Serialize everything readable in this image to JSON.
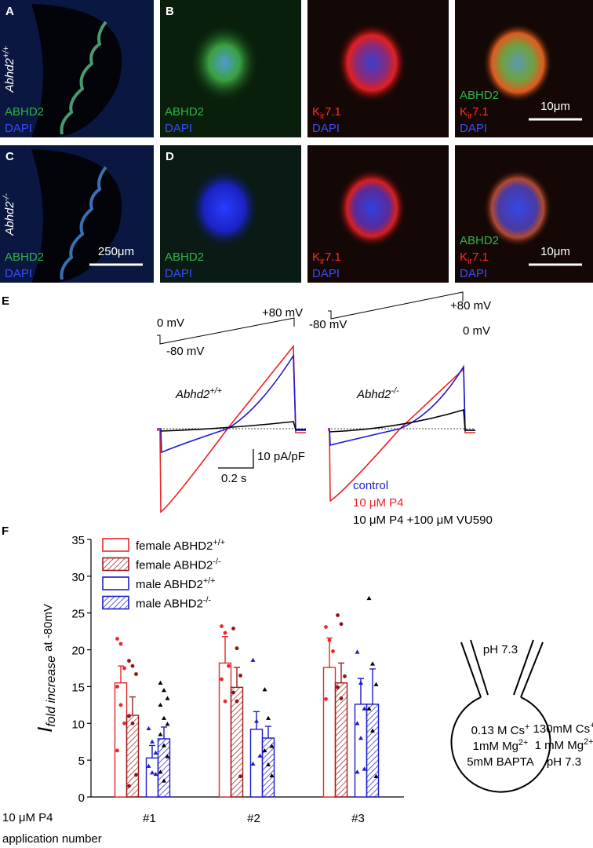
{
  "micrographs": {
    "rows": [
      {
        "genotype": {
          "gene": "Abhd2",
          "sup": "+/+"
        },
        "panels": [
          {
            "letter": "A",
            "labels": [
              {
                "text": "ABHD2",
                "color": "#2fb34a"
              },
              {
                "text": "DAPI",
                "color": "#3a4dff"
              }
            ]
          },
          {
            "letter": "B",
            "labels": [
              {
                "text": "ABHD2",
                "color": "#2fb34a"
              },
              {
                "text": "DAPI",
                "color": "#3a4dff"
              }
            ]
          },
          {
            "labels": [
              {
                "text": "K",
                "sub": "ir",
                "rest": "7.1",
                "color": "#ff2a2a"
              },
              {
                "text": "DAPI",
                "color": "#3a4dff"
              }
            ]
          },
          {
            "labels": [
              {
                "text": "ABHD2",
                "color": "#2fb34a"
              },
              {
                "text": "K",
                "sub": "ir",
                "rest": "7.1",
                "color": "#ff2a2a"
              },
              {
                "text": "DAPI",
                "color": "#3a4dff"
              }
            ],
            "scale_bar": "10μm"
          }
        ]
      },
      {
        "genotype": {
          "gene": "Abhd2",
          "sup": "-/-"
        },
        "panels": [
          {
            "letter": "C",
            "labels": [
              {
                "text": "ABHD2",
                "color": "#2fb34a"
              },
              {
                "text": "DAPI",
                "color": "#3a4dff"
              }
            ],
            "scale_bar": "250μm"
          },
          {
            "letter": "D",
            "labels": [
              {
                "text": "ABHD2",
                "color": "#2fb34a"
              },
              {
                "text": "DAPI",
                "color": "#3a4dff"
              }
            ]
          },
          {
            "labels": [
              {
                "text": "K",
                "sub": "ir",
                "rest": "7.1",
                "color": "#ff2a2a"
              },
              {
                "text": "DAPI",
                "color": "#3a4dff"
              }
            ]
          },
          {
            "labels": [
              {
                "text": "ABHD2",
                "color": "#2fb34a"
              },
              {
                "text": "K",
                "sub": "ir",
                "rest": "7.1",
                "color": "#ff2a2a"
              },
              {
                "text": "DAPI",
                "color": "#3a4dff"
              }
            ],
            "scale_bar": "10μm"
          }
        ]
      }
    ]
  },
  "panel_e": {
    "letter": "E",
    "protocols": [
      {
        "zero": "0 mV",
        "plus": "+80 mV",
        "minus": "-80 mV"
      },
      {
        "zero": "0 mV",
        "plus": "+80 mV",
        "minus": "-80 mV"
      }
    ],
    "genotypes": [
      {
        "gene": "Abhd2",
        "sup": "+/+"
      },
      {
        "gene": "Abhd2",
        "sup": "-/-"
      }
    ],
    "scale": {
      "y": "10 pA/pF",
      "x": "0.2 s"
    },
    "legend": [
      {
        "text": "control",
        "color": "#1a1ad6"
      },
      {
        "text": "10 μM P4",
        "color": "#ee2222"
      },
      {
        "text": "10 μM P4 +100 μM VU590",
        "color": "#000000"
      }
    ]
  },
  "panel_f": {
    "letter": "F",
    "x_label": [
      "10 μM P4",
      "application number"
    ]
  },
  "chart_data": {
    "type": "bar",
    "y_label": {
      "main": "I",
      "sub": "fold increase",
      "rest": "at -80mV"
    },
    "categories": [
      "#1",
      "#2",
      "#3"
    ],
    "ylim": [
      0,
      35
    ],
    "yticks": [
      0,
      5,
      10,
      15,
      20,
      25,
      30,
      35
    ],
    "series": [
      {
        "name": "female ABHD2",
        "sup": "+/+",
        "color": "#e8262a",
        "hatch": false,
        "point_color": "#e8262a",
        "marker": "circle",
        "values": [
          15.5,
          18.2,
          17.6
        ],
        "errors": [
          2.3,
          3.6,
          4.0
        ],
        "points": [
          [
            21.5,
            20.8,
            17.5,
            15,
            12.5,
            10,
            6.3
          ],
          [
            23.2,
            22.3,
            17.8,
            16,
            13
          ],
          [
            23.1,
            21.3,
            19.8,
            13.3
          ]
        ]
      },
      {
        "name": "female ABHD2",
        "sup": "-/-",
        "color": "#9e1b1b",
        "hatch": true,
        "point_color": "#8b1414",
        "marker": "circle",
        "values": [
          11.1,
          14.9,
          15.5
        ],
        "errors": [
          2.5,
          2.7,
          2.7
        ],
        "points": [
          [
            18.5,
            17.8,
            16.7,
            11,
            10,
            3,
            1.5
          ],
          [
            22.9,
            20.2,
            16.5,
            14.2,
            13,
            2.8
          ],
          [
            24.7,
            23.5,
            16.4,
            14.9,
            13.4
          ]
        ]
      },
      {
        "name": "male ABHD2",
        "sup": "+/+",
        "color": "#1a1acc",
        "hatch": false,
        "point_color": "#1a1acc",
        "marker": "triangle",
        "values": [
          5.3,
          9.2,
          12.6
        ],
        "errors": [
          1.7,
          2.4,
          3.5
        ],
        "points": [
          [
            9.3,
            7.5,
            6,
            4.2,
            3.3,
            3.1
          ],
          [
            18.6,
            10.3,
            5.6,
            4.5
          ],
          [
            19.7,
            15.5,
            12,
            10,
            8,
            3.8,
            3.4
          ]
        ]
      },
      {
        "name": "male ABHD2",
        "sup": "-/-",
        "color": "#1a1acc",
        "hatch": true,
        "point_color": "#000000",
        "marker": "triangle",
        "values": [
          7.9,
          8.0,
          12.6
        ],
        "errors": [
          1.6,
          1.6,
          4.8
        ],
        "points": [
          [
            15.5,
            14.5,
            13.4,
            12.5,
            10.7,
            9.9,
            8.5,
            7,
            5.5,
            3.4,
            2.2
          ],
          [
            14.6,
            10.7,
            6.9,
            6.3,
            4.4,
            2.9
          ],
          [
            27,
            18.1,
            15.3,
            12,
            9,
            2.8
          ]
        ]
      }
    ]
  },
  "pipette": {
    "pipette_ph": "pH 7.3",
    "inside": [
      {
        "text": "0.13 M Cs",
        "sup": "+"
      },
      {
        "text": "1mM Mg",
        "sup": "2+"
      },
      {
        "text": "5mM BAPTA"
      }
    ],
    "outside": [
      {
        "text": "130mM Cs",
        "sup": "+"
      },
      {
        "text": "1 mM Mg",
        "sup": "2+"
      },
      {
        "text": "pH 7.3"
      }
    ]
  }
}
